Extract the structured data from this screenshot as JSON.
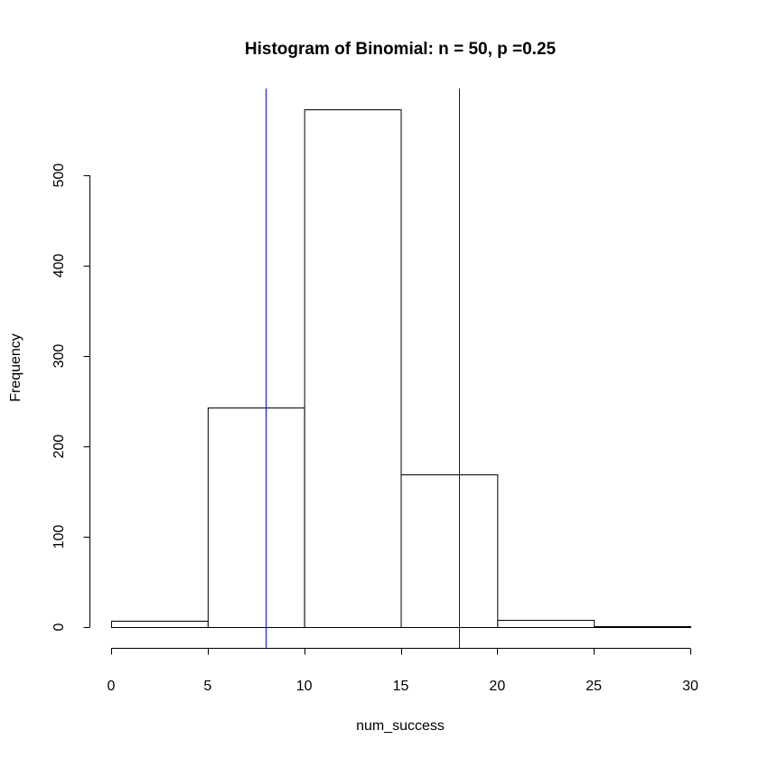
{
  "chart_data": {
    "type": "bar",
    "title": "Histogram of Binomial: n = 50, p =0.25",
    "xlabel": "num_success",
    "ylabel": "Frequency",
    "bins": [
      {
        "start": 0,
        "end": 5,
        "count": 7
      },
      {
        "start": 5,
        "end": 10,
        "count": 243
      },
      {
        "start": 10,
        "end": 15,
        "count": 573
      },
      {
        "start": 15,
        "end": 20,
        "count": 169
      },
      {
        "start": 20,
        "end": 25,
        "count": 8
      },
      {
        "start": 25,
        "end": 30,
        "count": 1
      }
    ],
    "xlim": [
      0,
      30
    ],
    "ylim": [
      0,
      573
    ],
    "x_ticks": [
      0,
      5,
      10,
      15,
      20,
      25,
      30
    ],
    "y_ticks": [
      0,
      100,
      200,
      300,
      400,
      500
    ],
    "reference_lines": [
      {
        "x": 8,
        "color": "#0000ff"
      },
      {
        "x": 18,
        "color": "#0000ff"
      }
    ],
    "grid": false,
    "legend": "none"
  }
}
